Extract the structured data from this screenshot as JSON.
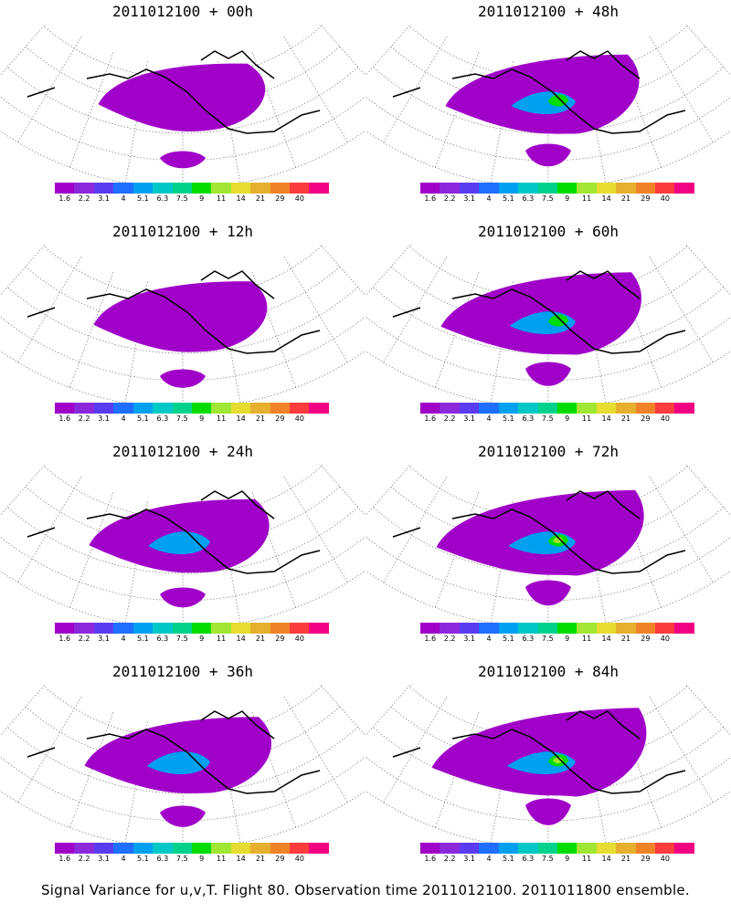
{
  "panels": [
    {
      "title": "2011012100 + 00h",
      "intensity": 0.15
    },
    {
      "title": "2011012100 + 48h",
      "intensity": 0.55
    },
    {
      "title": "2011012100 + 12h",
      "intensity": 0.25
    },
    {
      "title": "2011012100 + 60h",
      "intensity": 0.65
    },
    {
      "title": "2011012100 + 24h",
      "intensity": 0.35
    },
    {
      "title": "2011012100 + 72h",
      "intensity": 0.75
    },
    {
      "title": "2011012100 + 36h",
      "intensity": 0.45
    },
    {
      "title": "2011012100 + 84h",
      "intensity": 0.85
    }
  ],
  "colorbar": {
    "labels": [
      "1.6",
      "2.2",
      "3.1",
      "4",
      "5.1",
      "6.3",
      "7.5",
      "9",
      "11",
      "14",
      "21",
      "29",
      "40"
    ],
    "colors": [
      "#a000c8",
      "#8c28dc",
      "#5a3cf0",
      "#1e6eff",
      "#00a0f0",
      "#00c8c8",
      "#00d28c",
      "#00dc00",
      "#a0e632",
      "#e6dc32",
      "#e6af2d",
      "#f08228",
      "#fa3c3c",
      "#f00082"
    ]
  },
  "caption": "Signal Variance for u,v,T. Flight 80. Observation time 2011012100. 2011011800 ensemble."
}
